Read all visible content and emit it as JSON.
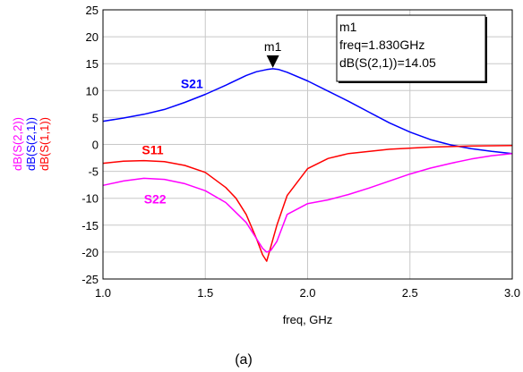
{
  "chart_data": {
    "type": "line",
    "xlabel": "freq, GHz",
    "xlim": [
      1.0,
      3.0
    ],
    "ylim": [
      -25,
      25
    ],
    "x_ticks": [
      "1.0",
      "1.5",
      "2.0",
      "2.5",
      "3.0"
    ],
    "x_tick_values": [
      1.0,
      1.5,
      2.0,
      2.5,
      3.0
    ],
    "y_ticks": [
      "25",
      "20",
      "15",
      "10",
      "5",
      "0",
      "-5",
      "-10",
      "-15",
      "-20",
      "-25"
    ],
    "y_tick_values": [
      25,
      20,
      15,
      10,
      5,
      0,
      -5,
      -10,
      -15,
      -20,
      -25
    ],
    "grid": true,
    "ylabels": [
      {
        "text": "dB(S(2,2))",
        "color": "#ff00ff"
      },
      {
        "text": "dB(S(2,1))",
        "color": "#0000ff"
      },
      {
        "text": "dB(S(1,1))",
        "color": "#ff0000"
      }
    ],
    "series": [
      {
        "name": "S21",
        "color": "#0000ff",
        "label_at": [
          1.38,
          10.5
        ],
        "x": [
          1.0,
          1.1,
          1.2,
          1.3,
          1.4,
          1.5,
          1.6,
          1.7,
          1.75,
          1.8,
          1.83,
          1.86,
          1.9,
          2.0,
          2.1,
          2.2,
          2.3,
          2.4,
          2.5,
          2.6,
          2.7,
          2.8,
          2.9,
          3.0
        ],
        "y": [
          4.3,
          4.9,
          5.6,
          6.5,
          7.8,
          9.3,
          11.0,
          12.8,
          13.5,
          13.9,
          14.05,
          13.9,
          13.4,
          11.8,
          9.9,
          8.0,
          6.0,
          4.0,
          2.3,
          0.9,
          -0.1,
          -0.8,
          -1.3,
          -1.7
        ]
      },
      {
        "name": "S11",
        "color": "#ff0000",
        "label_at": [
          1.19,
          -1.8
        ],
        "x": [
          1.0,
          1.1,
          1.2,
          1.3,
          1.4,
          1.5,
          1.6,
          1.65,
          1.7,
          1.75,
          1.78,
          1.8,
          1.82,
          1.85,
          1.9,
          2.0,
          2.1,
          2.2,
          2.4,
          2.6,
          2.8,
          3.0
        ],
        "y": [
          -3.5,
          -3.1,
          -3.0,
          -3.2,
          -3.9,
          -5.2,
          -8.0,
          -10.0,
          -13.0,
          -17.5,
          -20.5,
          -21.7,
          -19.0,
          -15.0,
          -9.5,
          -4.5,
          -2.6,
          -1.7,
          -0.9,
          -0.5,
          -0.3,
          -0.2
        ]
      },
      {
        "name": "S22",
        "color": "#ff00ff",
        "label_at": [
          1.2,
          -11.0
        ],
        "x": [
          1.0,
          1.1,
          1.2,
          1.3,
          1.4,
          1.5,
          1.6,
          1.7,
          1.75,
          1.78,
          1.8,
          1.82,
          1.85,
          1.9,
          2.0,
          2.1,
          2.2,
          2.3,
          2.4,
          2.5,
          2.6,
          2.7,
          2.8,
          2.9,
          3.0
        ],
        "y": [
          -7.6,
          -6.8,
          -6.3,
          -6.5,
          -7.3,
          -8.6,
          -10.8,
          -14.5,
          -17.5,
          -19.3,
          -20.0,
          -19.7,
          -18.0,
          -13.0,
          -11.0,
          -10.3,
          -9.3,
          -8.1,
          -6.8,
          -5.5,
          -4.4,
          -3.5,
          -2.7,
          -2.1,
          -1.7
        ]
      }
    ],
    "marker": {
      "label": "m1",
      "x": 1.83,
      "y": 14.05,
      "info_lines": [
        "m1",
        "freq=1.830GHz",
        "dB(S(2,1))=14.05"
      ]
    },
    "caption": "(a)"
  }
}
